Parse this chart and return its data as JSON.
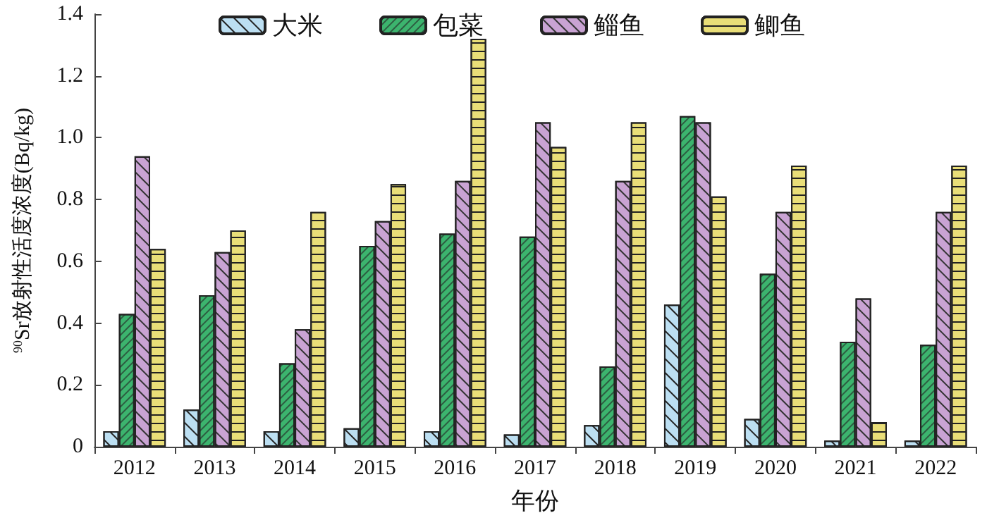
{
  "chart_data": {
    "type": "bar",
    "xlabel": "年份",
    "ylabel": "$^{90}$Sr放射性活度浓度(Bq/kg)",
    "categories": [
      "2012",
      "2013",
      "2014",
      "2015",
      "2016",
      "2017",
      "2018",
      "2019",
      "2020",
      "2021",
      "2022"
    ],
    "series": [
      {
        "name": "大米",
        "color": "#bcdff2",
        "values": [
          0.05,
          0.12,
          0.05,
          0.06,
          0.05,
          0.04,
          0.07,
          0.46,
          0.09,
          0.02,
          0.02
        ]
      },
      {
        "name": "包菜",
        "color": "#3cb46e",
        "values": [
          0.43,
          0.49,
          0.27,
          0.65,
          0.69,
          0.68,
          0.26,
          1.07,
          0.56,
          0.34,
          0.33
        ]
      },
      {
        "name": "鲻鱼",
        "color": "#c9a3d3",
        "values": [
          0.94,
          0.63,
          0.38,
          0.73,
          0.86,
          1.05,
          0.86,
          1.05,
          0.76,
          0.48,
          0.76
        ]
      },
      {
        "name": "鲫鱼",
        "color": "#e9de78",
        "values": [
          0.64,
          0.7,
          0.76,
          0.85,
          1.32,
          0.97,
          1.05,
          0.81,
          0.91,
          0.08,
          0.91
        ]
      }
    ],
    "ylim": [
      0,
      1.4
    ],
    "yticks": [
      0,
      0.2,
      0.4,
      0.6,
      0.8,
      {
        "value": 1,
        "label": "1.0"
      },
      1.2,
      1.4
    ],
    "grid": false,
    "legend": "top"
  }
}
